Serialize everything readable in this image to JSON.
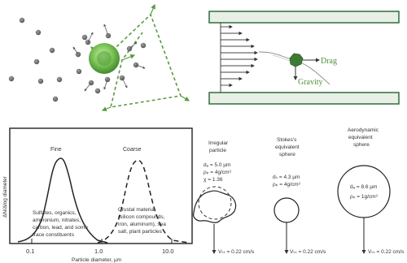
{
  "colors": {
    "particle_light": "#9edc7a",
    "particle_dark": "#3f8a2e",
    "dot": "#6a6a6a",
    "green_line": "#5a9a40",
    "ink": "#222222",
    "tube": "#2f6f3a"
  },
  "panel_top_right": {
    "drag_label": "Drag",
    "gravity_label": "Gravity"
  },
  "panel_distribution": {
    "y_axis_label": "ΔN/Δlog diameter",
    "x_axis_label": "Particle diameter, µm",
    "x_ticks": [
      "0.1",
      "1.0",
      "10.0"
    ],
    "fine_label": "Fine",
    "coarse_label": "Coarse",
    "fine_desc": [
      "Sulfates, organics,",
      "ammonium, nitrates,",
      "carbon, lead, and some",
      "trace constituents"
    ],
    "coarse_desc": [
      "Crustal material",
      "(silicon compounds,",
      "iron, aluminum), sea",
      "salt, plant particles"
    ]
  },
  "panel_spheres": {
    "irregular": {
      "title": [
        "Irregular",
        "particle"
      ],
      "params": [
        "dₐ = 5.0 µm",
        "ρₚ = 4g/cm³",
        "χ = 1.36"
      ],
      "velocity": "Vₜₛ = 0.22 cm/s"
    },
    "stokes": {
      "title": [
        "Stokes's",
        "equivalent",
        "sphere"
      ],
      "params": [
        "dₛ = 4.3 µm",
        "ρₚ = 4g/cm³"
      ],
      "velocity": "Vₜₛ = 0.22 cm/s"
    },
    "aerodynamic": {
      "title": [
        "Aerodynamic",
        "equivalent",
        "sphere"
      ],
      "params": [
        "dₐ = 8.6 µm",
        "ρₚ = 1g/cm³"
      ],
      "velocity": "Vₜₛ = 0.22 cm/s"
    }
  }
}
